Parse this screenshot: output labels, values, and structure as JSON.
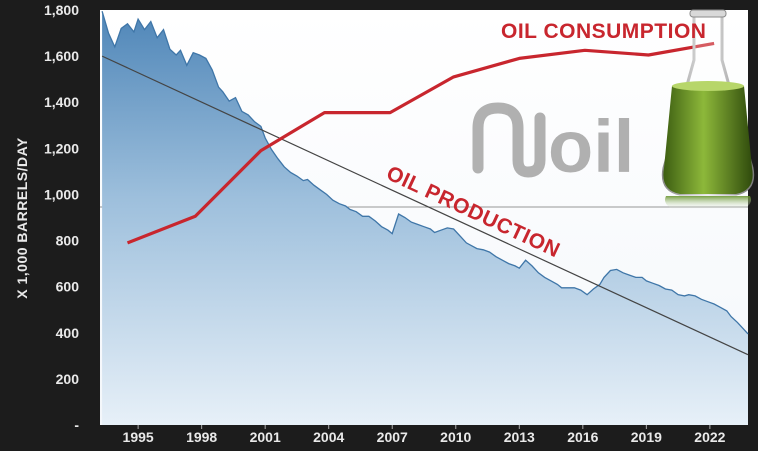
{
  "chart_data": {
    "type": "line",
    "ylabel": "X 1,000 BARRELS/DAY",
    "ylim": [
      0,
      1800
    ],
    "y_ticks": [
      "1,800",
      "1,600",
      "1,400",
      "1,200",
      "1,000",
      "800",
      "600",
      "400",
      "200",
      "-"
    ],
    "y_tick_values": [
      1800,
      1600,
      1400,
      1200,
      1000,
      800,
      600,
      400,
      200,
      0
    ],
    "x_ticks": [
      "1995",
      "1998",
      "2001",
      "2004",
      "2007",
      "2010",
      "2013",
      "2016",
      "2019",
      "2022"
    ],
    "x_tick_values": [
      1995,
      1998,
      2001,
      2004,
      2007,
      2010,
      2013,
      2016,
      2019,
      2022
    ],
    "xlim": [
      1993.2,
      2023.8
    ],
    "grid": false,
    "legend": "none",
    "annotations": [
      {
        "text": "OIL CONSUMPTION",
        "color": "#c8262e"
      },
      {
        "text": "OIL PRODUCTION",
        "color": "#c8262e"
      }
    ],
    "series": [
      {
        "name": "OIL PRODUCTION",
        "style": "area",
        "color": "#5b8fbd",
        "x": [
          1993.3,
          1993.6,
          1993.9,
          1994.2,
          1994.5,
          1994.8,
          1995.0,
          1995.3,
          1995.6,
          1995.9,
          1996.2,
          1996.5,
          1996.8,
          1997.0,
          1997.3,
          1997.6,
          1997.9,
          1998.2,
          1998.5,
          1998.8,
          1999.0,
          1999.3,
          1999.6,
          1999.9,
          2000.2,
          2000.5,
          2000.8,
          2001.0,
          2001.3,
          2001.6,
          2001.9,
          2002.2,
          2002.5,
          2002.8,
          2003.0,
          2003.3,
          2003.6,
          2003.9,
          2004.2,
          2004.5,
          2004.8,
          2005.0,
          2005.3,
          2005.6,
          2005.9,
          2006.2,
          2006.5,
          2006.8,
          2007.0,
          2007.3,
          2007.6,
          2007.9,
          2008.2,
          2008.5,
          2008.8,
          2009.0,
          2009.3,
          2009.6,
          2009.9,
          2010.2,
          2010.5,
          2010.8,
          2011.0,
          2011.3,
          2011.6,
          2011.9,
          2012.2,
          2012.5,
          2012.8,
          2013.0,
          2013.3,
          2013.6,
          2013.9,
          2014.2,
          2014.5,
          2014.8,
          2015.0,
          2015.3,
          2015.6,
          2015.9,
          2016.2,
          2016.5,
          2016.8,
          2017.0,
          2017.3,
          2017.6,
          2017.9,
          2018.2,
          2018.5,
          2018.8,
          2019.0,
          2019.3,
          2019.6,
          2019.9,
          2020.2,
          2020.5,
          2020.8,
          2021.0,
          2021.3,
          2021.6,
          2021.9,
          2022.2,
          2022.5,
          2022.8,
          2023.0,
          2023.3,
          2023.6,
          2023.8
        ],
        "values": [
          1795,
          1700,
          1640,
          1720,
          1740,
          1705,
          1760,
          1715,
          1750,
          1680,
          1715,
          1630,
          1605,
          1625,
          1560,
          1615,
          1605,
          1590,
          1540,
          1465,
          1445,
          1405,
          1420,
          1360,
          1345,
          1315,
          1295,
          1245,
          1195,
          1155,
          1120,
          1095,
          1080,
          1060,
          1065,
          1040,
          1020,
          1000,
          975,
          960,
          950,
          935,
          925,
          905,
          905,
          885,
          860,
          845,
          830,
          915,
          900,
          880,
          870,
          860,
          850,
          835,
          845,
          855,
          850,
          820,
          790,
          775,
          765,
          760,
          750,
          730,
          715,
          700,
          690,
          680,
          715,
          690,
          660,
          640,
          625,
          610,
          595,
          595,
          595,
          585,
          565,
          590,
          610,
          640,
          670,
          675,
          660,
          650,
          640,
          640,
          625,
          615,
          605,
          590,
          585,
          565,
          560,
          565,
          560,
          545,
          535,
          525,
          510,
          495,
          470,
          445,
          415,
          395
        ]
      },
      {
        "name": "OIL CONSUMPTION",
        "style": "line",
        "color": "#c8262e",
        "x": [
          1994.5,
          1997.7,
          2000.8,
          2003.8,
          2006.9,
          2009.9,
          2013.0,
          2016.1,
          2019.1,
          2022.2
        ],
        "values": [
          790,
          905,
          1190,
          1355,
          1355,
          1510,
          1590,
          1625,
          1605,
          1655
        ]
      },
      {
        "name": "trend",
        "style": "line",
        "color": "#444444",
        "x": [
          1993.3,
          2023.8
        ],
        "values": [
          1600,
          305
        ]
      }
    ]
  }
}
